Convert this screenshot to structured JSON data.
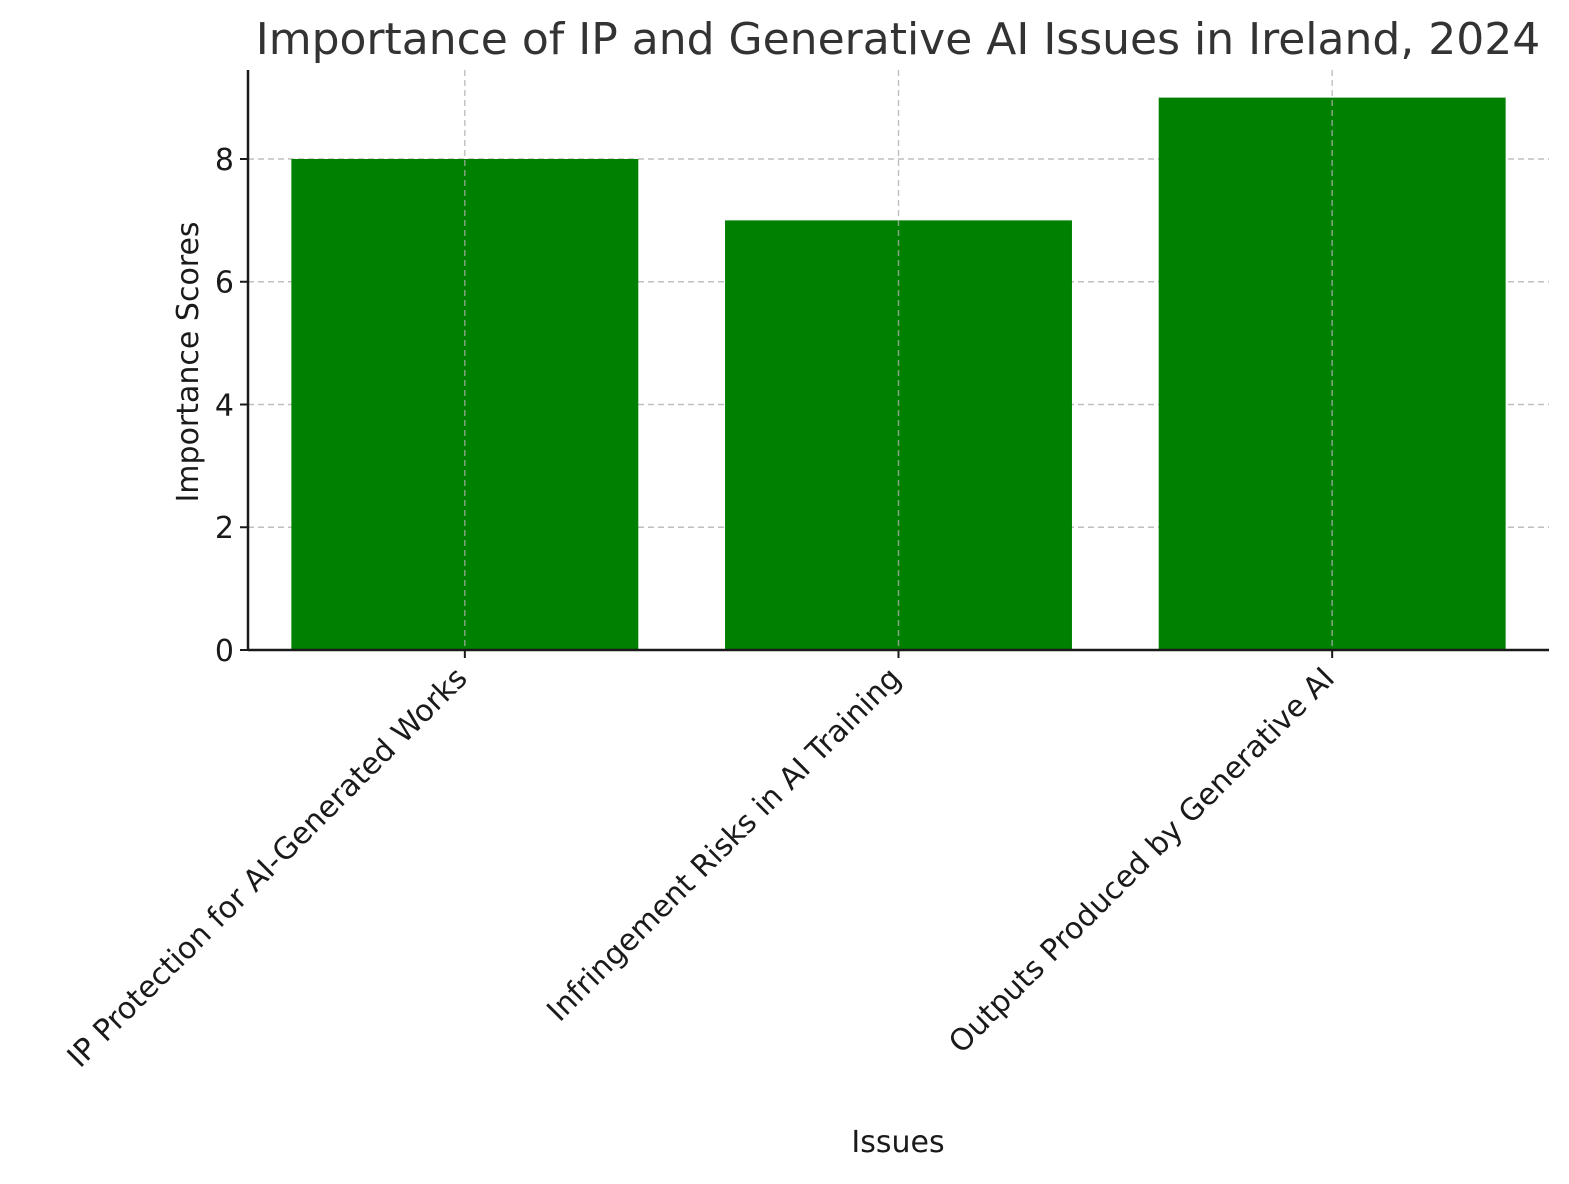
{
  "chart_data": {
    "type": "bar",
    "title": "Importance of IP and Generative AI Issues in Ireland, 2024",
    "xlabel": "Issues",
    "ylabel": "Importance Scores",
    "categories": [
      "IP Protection for AI-Generated Works",
      "Infringement Risks in AI Training",
      "Outputs Produced by Generative AI"
    ],
    "values": [
      8,
      7,
      9
    ],
    "ylim": [
      0,
      9.45
    ],
    "yticks": [
      0,
      2,
      4,
      6,
      8
    ],
    "ytick_labels": [
      "0",
      "2",
      "4",
      "6",
      "8"
    ],
    "grid": true,
    "bar_color": "#008000"
  }
}
